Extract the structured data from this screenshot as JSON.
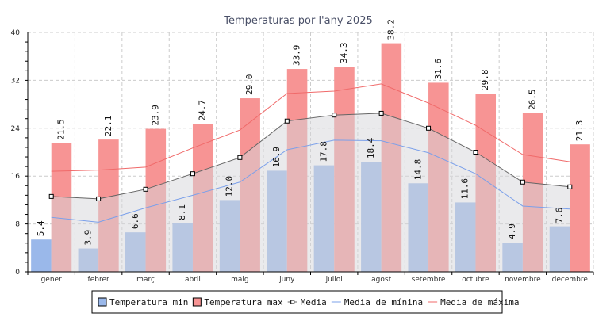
{
  "chart_data": {
    "type": "bar",
    "title": "Temperaturas por l'any 2025",
    "xlabel": "",
    "ylabel": "",
    "ylim": [
      0,
      40
    ],
    "yticks": [
      "0",
      "8",
      "16",
      "24",
      "32",
      "40"
    ],
    "grid": true,
    "legend_position": "bottom",
    "categories": [
      "gener",
      "febrer",
      "març",
      "abril",
      "maig",
      "juny",
      "juliol",
      "agost",
      "setembre",
      "octubre",
      "novembre",
      "decembre"
    ],
    "series": [
      {
        "name": "Temperatura min",
        "kind": "bar",
        "color": "#9ab8ea",
        "values": [
          5.4,
          3.9,
          6.6,
          8.1,
          12.0,
          16.9,
          17.8,
          18.4,
          14.8,
          11.6,
          4.9,
          7.6
        ],
        "labels": [
          "5.4",
          "3.9",
          "6.6",
          "8.1",
          "12.0",
          "16.9",
          "17.8",
          "18.4",
          "14.8",
          "11.6",
          "4.9",
          "7.6"
        ]
      },
      {
        "name": "Temperatura max",
        "kind": "bar",
        "color": "#f79494",
        "values": [
          21.5,
          22.1,
          23.9,
          24.7,
          29.0,
          33.9,
          34.3,
          38.2,
          31.6,
          29.8,
          26.5,
          21.3
        ],
        "labels": [
          "21.5",
          "22.1",
          "23.9",
          "24.7",
          "29.0",
          "33.9",
          "34.3",
          "38.2",
          "31.6",
          "29.8",
          "26.5",
          "21.3"
        ]
      },
      {
        "name": "Media",
        "kind": "line-area",
        "color": "#666666",
        "fill": "#e4e4e4",
        "values": [
          12.6,
          12.2,
          13.8,
          16.4,
          19.1,
          25.2,
          26.2,
          26.5,
          24.0,
          20.0,
          15.0,
          14.2
        ]
      },
      {
        "name": "Media de mínina",
        "kind": "line",
        "color": "#7ba0ea",
        "values": [
          9.1,
          8.3,
          10.7,
          12.8,
          15.0,
          20.4,
          22.0,
          21.9,
          19.9,
          16.4,
          11.0,
          10.5
        ]
      },
      {
        "name": "Media de máxima",
        "kind": "line",
        "color": "#f06a6a",
        "values": [
          16.8,
          17.0,
          17.5,
          20.7,
          23.7,
          29.8,
          30.2,
          31.4,
          28.2,
          24.5,
          19.6,
          18.4
        ]
      }
    ],
    "legend": [
      "Temperatura min",
      "Temperatura max",
      "Media",
      "Media de mínina",
      "Media de máxima"
    ]
  }
}
